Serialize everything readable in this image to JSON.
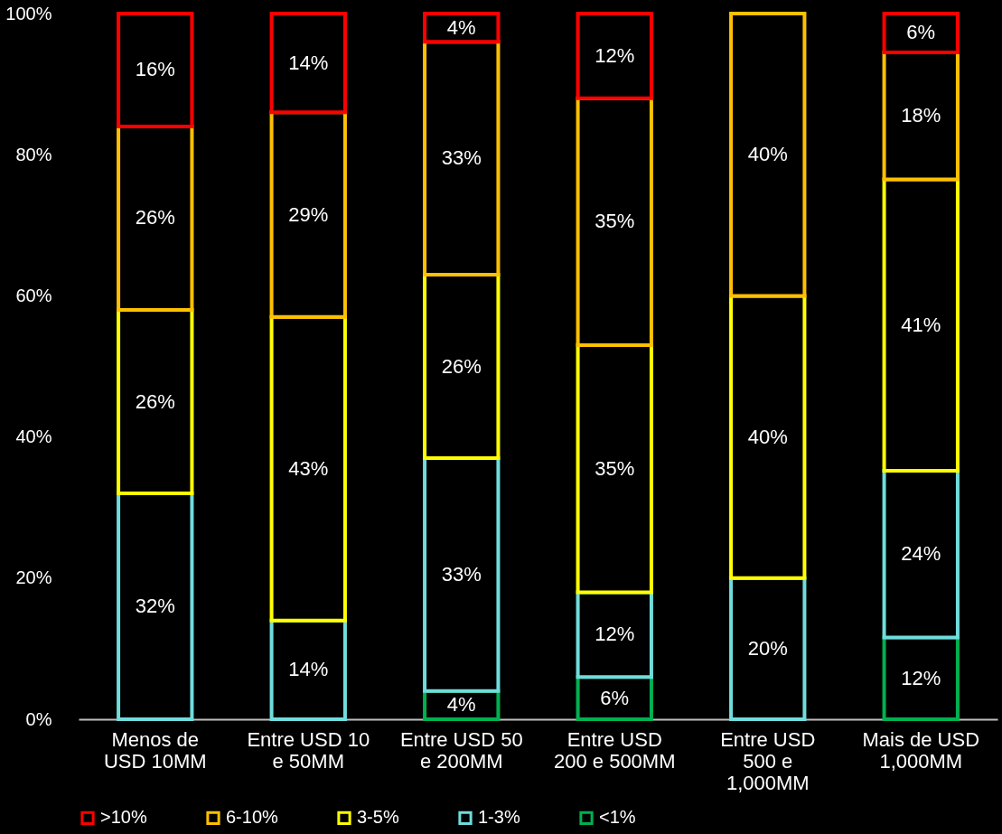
{
  "chart_data": {
    "type": "bar",
    "stacked": true,
    "categories": [
      "Menos de\nUSD 10MM",
      "Entre USD 10\ne 50MM",
      "Entre USD 50\ne 200MM",
      "Entre USD\n200 e 500MM",
      "Entre USD\n500 e\n1,000MM",
      "Mais de USD\n1,000MM"
    ],
    "series": [
      {
        "name": "<1%",
        "color": "#00b050",
        "values": [
          null,
          null,
          4,
          6,
          null,
          11.6
        ],
        "value_labels": [
          null,
          null,
          "4%",
          "6%",
          null,
          "12%"
        ]
      },
      {
        "name": "1-3%",
        "color": "#70dcdc",
        "values": [
          32,
          14,
          33,
          12,
          20,
          23.6
        ],
        "value_labels": [
          "32%",
          "14%",
          "33%",
          "12%",
          "20%",
          "24%"
        ]
      },
      {
        "name": "3-5%",
        "color": "#ffff00",
        "values": [
          26,
          43,
          26,
          35,
          40,
          41.3
        ],
        "value_labels": [
          "26%",
          "43%",
          "26%",
          "35%",
          "40%",
          "41%"
        ]
      },
      {
        "name": "6-10%",
        "color": "#ffc000",
        "values": [
          26,
          29,
          33,
          35,
          40,
          18
        ],
        "value_labels": [
          "26%",
          "29%",
          "33%",
          "35%",
          "40%",
          "18%"
        ]
      },
      {
        "name": ">10%",
        "color": "#ff0000",
        "values": [
          16,
          14,
          4,
          12,
          null,
          5.5
        ],
        "value_labels": [
          "16%",
          "14%",
          "4%",
          "12%",
          null,
          "6%"
        ]
      }
    ],
    "ylim": [
      0,
      100
    ],
    "yticks": [
      {
        "value": 0,
        "label": "0%"
      },
      {
        "value": 20,
        "label": "20%"
      },
      {
        "value": 40,
        "label": "40%"
      },
      {
        "value": 60,
        "label": "60%"
      },
      {
        "value": 80,
        "label": "80%"
      },
      {
        "value": 100,
        "label": "100%"
      }
    ],
    "grid": false,
    "legend": "bottom left"
  }
}
